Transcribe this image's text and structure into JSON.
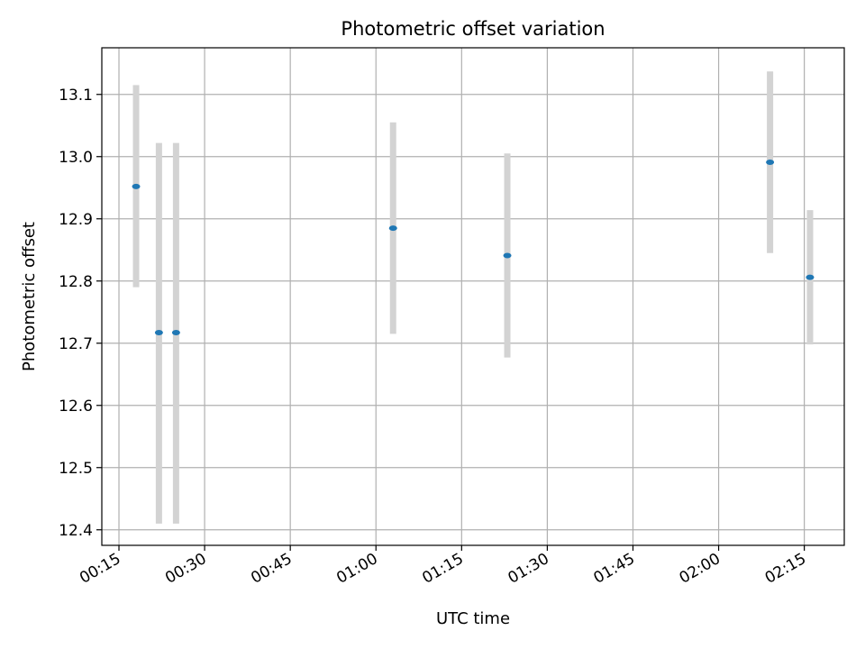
{
  "chart_data": {
    "type": "scatter",
    "title": "Photometric offset variation",
    "xlabel": "UTC time",
    "ylabel": "Photometric offset",
    "x_ticks": [
      "00:15",
      "00:30",
      "00:45",
      "01:00",
      "01:15",
      "01:30",
      "01:45",
      "02:00",
      "02:15"
    ],
    "y_ticks": [
      "12.4",
      "12.5",
      "12.6",
      "12.7",
      "12.8",
      "12.9",
      "13.0",
      "13.1"
    ],
    "xlim": [
      "00:12",
      "02:22"
    ],
    "ylim": [
      12.375,
      13.175
    ],
    "grid": true,
    "series": [
      {
        "marker_color": "#1f77b4",
        "errorbar_color": "#d3d3d3",
        "points": [
          {
            "x": "00:18",
            "y": 12.952,
            "err_low": 12.79,
            "err_high": 13.115
          },
          {
            "x": "00:22",
            "y": 12.717,
            "err_low": 12.41,
            "err_high": 13.022
          },
          {
            "x": "00:25",
            "y": 12.717,
            "err_low": 12.41,
            "err_high": 13.022
          },
          {
            "x": "01:03",
            "y": 12.885,
            "err_low": 12.715,
            "err_high": 13.055
          },
          {
            "x": "01:23",
            "y": 12.841,
            "err_low": 12.677,
            "err_high": 13.005
          },
          {
            "x": "02:09",
            "y": 12.991,
            "err_low": 12.845,
            "err_high": 13.137
          },
          {
            "x": "02:16",
            "y": 12.806,
            "err_low": 12.698,
            "err_high": 12.914
          }
        ]
      }
    ]
  }
}
